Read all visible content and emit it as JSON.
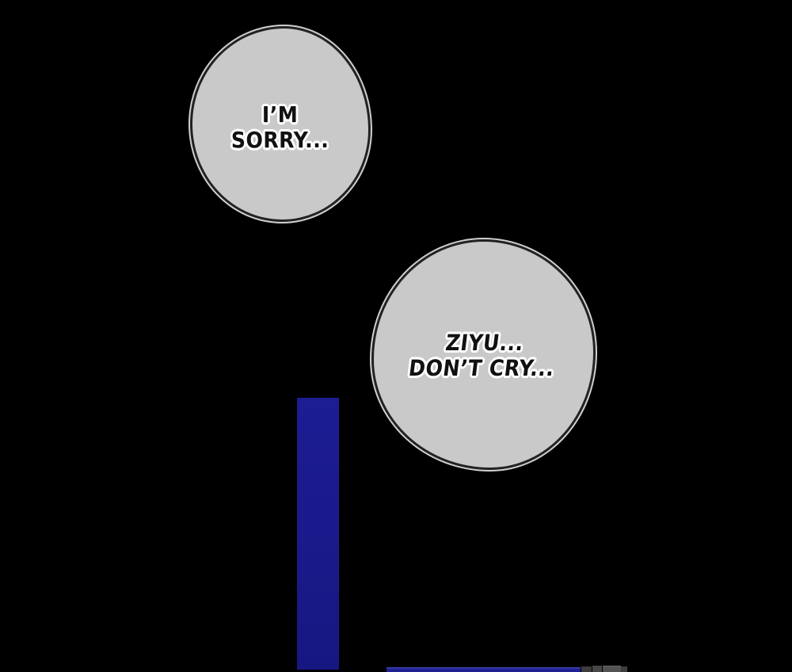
{
  "panel": {
    "type": "webtoon-comic-panel",
    "background_color": "#000000"
  },
  "speech_bubbles": [
    {
      "name": "bubble-1",
      "lines": [
        "I’M",
        "SORRY..."
      ],
      "fill_color": "#c9c9c9",
      "outline_color": "#222222",
      "halo_color": "#cfcfcf",
      "text_color": "#111111",
      "text_outline_color": "#ffffff"
    },
    {
      "name": "bubble-2",
      "lines": [
        "ZIYU...",
        "DON’T CRY..."
      ],
      "fill_color": "#c9c9c9",
      "outline_color": "#222222",
      "halo_color": "#cfcfcf",
      "text_color": "#111111",
      "text_outline_color": "#ffffff"
    }
  ],
  "artwork": {
    "vertical_bar_color": "#1a1a8d",
    "bottom_strip_color": "#222297",
    "bottom_strip_highlight_color": "#4949b4",
    "gray_block_colors": [
      "#3c3c3c",
      "#474747",
      "#525252",
      "#3e3e3e"
    ]
  }
}
